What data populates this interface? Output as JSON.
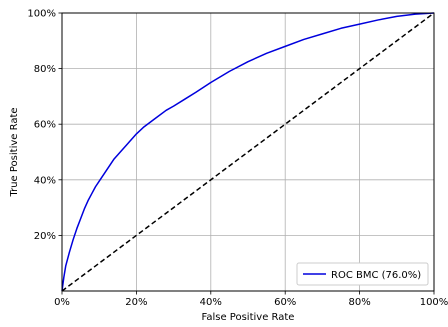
{
  "chart_data": {
    "type": "line",
    "title": "",
    "xlabel": "False Positive Rate",
    "ylabel": "True Positive Rate",
    "xlim": [
      0,
      1
    ],
    "ylim": [
      0,
      1
    ],
    "grid": true,
    "legend_position": "bottom-right",
    "x_ticks": [
      {
        "value": 0.0,
        "label": "0%"
      },
      {
        "value": 0.2,
        "label": "20%"
      },
      {
        "value": 0.4,
        "label": "40%"
      },
      {
        "value": 0.6,
        "label": "60%"
      },
      {
        "value": 0.8,
        "label": "80%"
      },
      {
        "value": 1.0,
        "label": "100%"
      }
    ],
    "y_ticks": [
      {
        "value": 0.2,
        "label": "20%"
      },
      {
        "value": 0.4,
        "label": "40%"
      },
      {
        "value": 0.6,
        "label": "60%"
      },
      {
        "value": 0.8,
        "label": "80%"
      },
      {
        "value": 1.0,
        "label": "100%"
      }
    ],
    "series": [
      {
        "name": "ROC BMC (76.0%)",
        "color": "#0000dd",
        "style": "solid",
        "x": [
          0.0,
          0.005,
          0.01,
          0.02,
          0.03,
          0.04,
          0.05,
          0.06,
          0.07,
          0.08,
          0.09,
          0.1,
          0.12,
          0.14,
          0.16,
          0.18,
          0.2,
          0.22,
          0.25,
          0.28,
          0.3,
          0.33,
          0.36,
          0.4,
          0.45,
          0.5,
          0.55,
          0.6,
          0.65,
          0.7,
          0.75,
          0.8,
          0.85,
          0.9,
          0.95,
          1.0
        ],
        "y": [
          0.0,
          0.05,
          0.09,
          0.14,
          0.185,
          0.225,
          0.26,
          0.295,
          0.325,
          0.35,
          0.375,
          0.395,
          0.435,
          0.475,
          0.505,
          0.535,
          0.565,
          0.59,
          0.62,
          0.65,
          0.665,
          0.69,
          0.715,
          0.75,
          0.79,
          0.825,
          0.855,
          0.88,
          0.905,
          0.925,
          0.945,
          0.96,
          0.975,
          0.988,
          0.996,
          1.0
        ]
      },
      {
        "name": "",
        "color": "#000000",
        "style": "dashed",
        "x": [
          0,
          1
        ],
        "y": [
          0,
          1
        ]
      }
    ],
    "legend": [
      {
        "label": "ROC BMC (76.0%)",
        "color": "#0000dd"
      }
    ]
  }
}
